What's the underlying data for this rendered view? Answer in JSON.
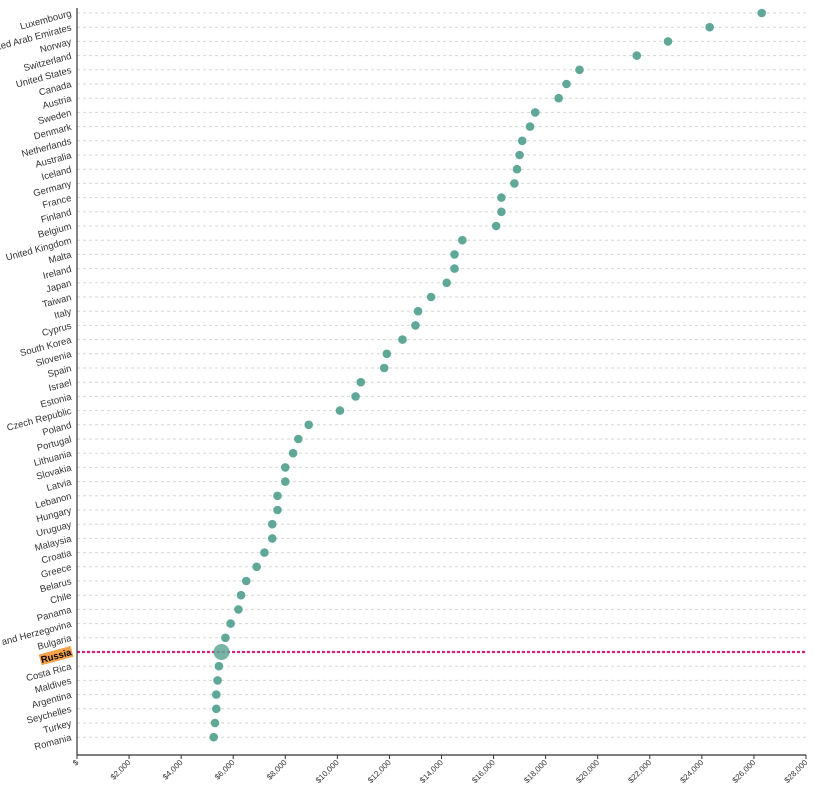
{
  "chart_data": {
    "type": "scatter",
    "orientation": "horizontal",
    "title": "",
    "xlabel": "",
    "ylabel": "",
    "xlim": [
      0,
      28000
    ],
    "x_tick_labels": [
      "$",
      "$2,000",
      "$4,000",
      "$6,000",
      "$8,000",
      "$10,000",
      "$12,000",
      "$14,000",
      "$16,000",
      "$18,000",
      "$20,000",
      "$22,000",
      "$24,000",
      "$26,000",
      "$28,000"
    ],
    "x_tick_values": [
      0,
      2000,
      4000,
      6000,
      8000,
      10000,
      12000,
      14000,
      16000,
      18000,
      20000,
      22000,
      24000,
      26000,
      28000
    ],
    "grid": true,
    "highlight": {
      "label": "Russia",
      "value": 5550,
      "color": "#f5a24b",
      "line_color": "#d6217a"
    },
    "point_color": "#5fa898",
    "categories": [
      "Luxembourg",
      "United Arab Emirates",
      "Norway",
      "Switzerland",
      "United States",
      "Canada",
      "Austria",
      "Sweden",
      "Denmark",
      "Netherlands",
      "Australia",
      "Iceland",
      "Germany",
      "France",
      "Finland",
      "Belgium",
      "United Kingdom",
      "Malta",
      "Ireland",
      "Japan",
      "Taiwan",
      "Italy",
      "Cyprus",
      "South Korea",
      "Slovenia",
      "Spain",
      "Israel",
      "Estonia",
      "Czech Republic",
      "Poland",
      "Portugal",
      "Lithuania",
      "Slovakia",
      "Latvia",
      "Lebanon",
      "Hungary",
      "Uruguay",
      "Malaysia",
      "Croatia",
      "Greece",
      "Belarus",
      "Chile",
      "Panama",
      "Bosnia and Herzegovina",
      "Bulgaria",
      "Russia",
      "Costa Rica",
      "Maldives",
      "Argentina",
      "Seychelles",
      "Turkey",
      "Romania"
    ],
    "values": [
      26300,
      24300,
      22700,
      21500,
      19300,
      18800,
      18500,
      17600,
      17400,
      17100,
      17000,
      16900,
      16800,
      16300,
      16300,
      16100,
      14800,
      14500,
      14500,
      14200,
      13600,
      13100,
      13000,
      12500,
      11900,
      11800,
      10900,
      10700,
      10100,
      8900,
      8500,
      8300,
      8000,
      8000,
      7700,
      7700,
      7500,
      7500,
      7200,
      6900,
      6500,
      6300,
      6200,
      5900,
      5700,
      5550,
      5450,
      5400,
      5350,
      5350,
      5300,
      5250
    ]
  }
}
